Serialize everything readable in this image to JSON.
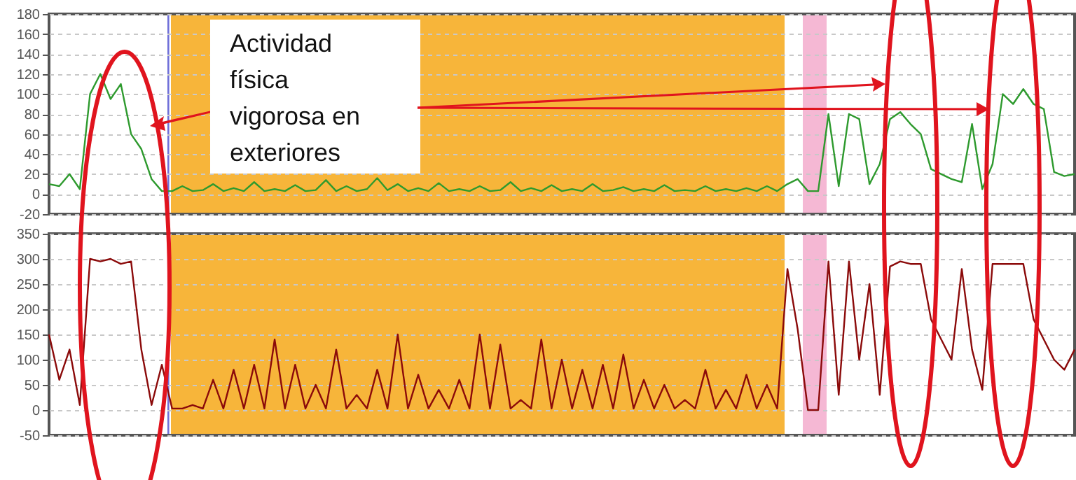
{
  "chart_data": [
    {
      "type": "line",
      "annotations": [
        "Actividad física vigorosa en exteriores"
      ],
      "ylim": [
        -20,
        180
      ],
      "yticks": [
        -20,
        0,
        20,
        40,
        60,
        80,
        100,
        120,
        140,
        160,
        180
      ],
      "grid": "y",
      "tick_labels": "y",
      "marker": "none",
      "line_style": "solid",
      "categories": [
        null,
        null,
        null,
        null,
        null,
        null,
        null,
        null,
        null,
        null,
        null,
        null,
        null,
        null,
        null,
        null,
        null,
        null,
        null,
        null,
        null,
        null,
        null,
        null,
        null,
        null,
        null,
        null,
        null,
        null,
        null,
        null,
        null,
        null,
        null,
        null,
        null,
        null,
        null,
        null,
        null,
        null,
        null,
        null,
        null,
        null,
        null,
        null,
        null,
        null,
        null,
        null,
        null,
        null,
        null,
        null,
        null,
        null,
        null,
        null,
        null,
        null,
        null,
        null,
        null,
        null,
        null,
        null,
        null,
        null,
        null,
        null,
        null,
        null,
        null,
        null,
        null,
        null,
        null,
        null,
        null,
        null,
        null,
        null,
        null,
        null,
        null,
        null,
        null,
        null,
        null,
        null,
        null,
        null,
        null,
        null,
        null,
        null,
        null,
        null,
        null
      ],
      "series": [
        {
          "color": "#2e9a2e",
          "values": [
            10,
            8,
            20,
            5,
            100,
            120,
            95,
            110,
            60,
            45,
            15,
            3,
            3,
            8,
            3,
            4,
            10,
            3,
            6,
            3,
            12,
            3,
            5,
            3,
            9,
            3,
            4,
            14,
            3,
            8,
            3,
            5,
            16,
            4,
            10,
            3,
            6,
            3,
            11,
            3,
            5,
            3,
            8,
            3,
            4,
            12,
            3,
            6,
            3,
            9,
            3,
            5,
            3,
            10,
            3,
            4,
            7,
            3,
            5,
            3,
            9,
            3,
            4,
            3,
            8,
            3,
            5,
            3,
            6,
            3,
            8,
            3,
            10,
            15,
            3,
            3,
            80,
            8,
            80,
            75,
            10,
            30,
            75,
            82,
            70,
            60,
            25,
            20,
            15,
            12,
            70,
            5,
            30,
            100,
            90,
            105,
            90,
            85,
            22,
            18,
            20
          ]
        }
      ]
    },
    {
      "type": "line",
      "ylim": [
        -50,
        350
      ],
      "yticks": [
        -50,
        0,
        50,
        100,
        150,
        200,
        250,
        300,
        350
      ],
      "grid": "y",
      "tick_labels": "y",
      "marker": "none",
      "line_style": "solid",
      "categories": [
        null,
        null,
        null,
        null,
        null,
        null,
        null,
        null,
        null,
        null,
        null,
        null,
        null,
        null,
        null,
        null,
        null,
        null,
        null,
        null,
        null,
        null,
        null,
        null,
        null,
        null,
        null,
        null,
        null,
        null,
        null,
        null,
        null,
        null,
        null,
        null,
        null,
        null,
        null,
        null,
        null,
        null,
        null,
        null,
        null,
        null,
        null,
        null,
        null,
        null,
        null,
        null,
        null,
        null,
        null,
        null,
        null,
        null,
        null,
        null,
        null,
        null,
        null,
        null,
        null,
        null,
        null,
        null,
        null,
        null,
        null,
        null,
        null,
        null,
        null,
        null,
        null,
        null,
        null,
        null,
        null,
        null,
        null,
        null,
        null,
        null,
        null,
        null,
        null,
        null,
        null,
        null,
        null,
        null,
        null,
        null,
        null,
        null,
        null,
        null,
        null
      ],
      "series": [
        {
          "color": "#8b0a0a",
          "values": [
            150,
            60,
            120,
            10,
            300,
            295,
            300,
            290,
            295,
            120,
            10,
            90,
            3,
            3,
            10,
            3,
            60,
            3,
            80,
            3,
            90,
            3,
            140,
            3,
            90,
            3,
            50,
            3,
            120,
            3,
            30,
            3,
            80,
            3,
            150,
            3,
            70,
            3,
            40,
            3,
            60,
            3,
            150,
            3,
            130,
            3,
            20,
            3,
            140,
            3,
            100,
            3,
            80,
            3,
            90,
            3,
            110,
            3,
            60,
            3,
            50,
            3,
            20,
            3,
            80,
            3,
            40,
            3,
            70,
            3,
            50,
            3,
            280,
            160,
            0,
            0,
            295,
            30,
            295,
            100,
            250,
            30,
            285,
            295,
            290,
            290,
            180,
            140,
            100,
            280,
            120,
            40,
            290,
            290,
            290,
            290,
            180,
            140,
            100,
            80,
            120
          ]
        }
      ]
    }
  ]
}
